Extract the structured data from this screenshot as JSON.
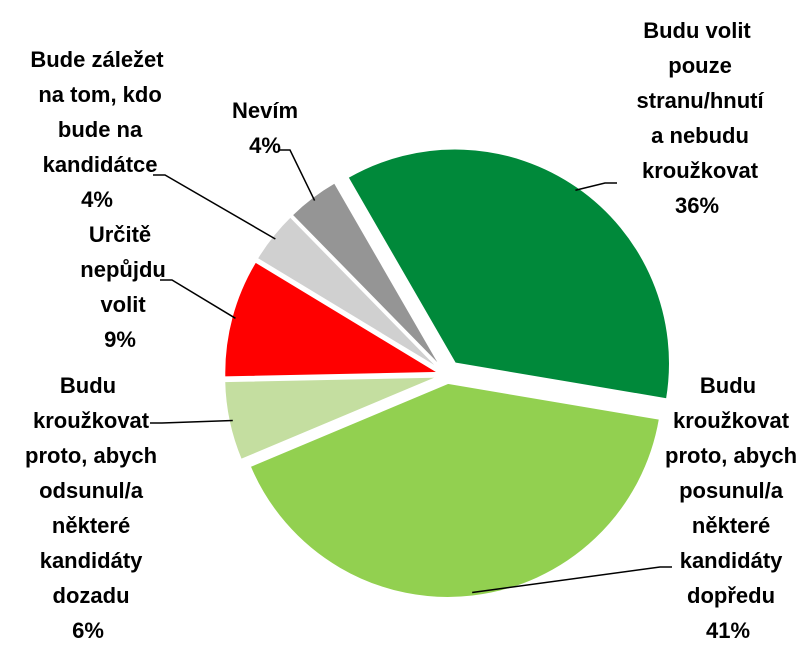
{
  "chart_data": {
    "type": "pie",
    "categories": [
      "Budu volit pouze stranu/hnutí a nebudu kroužkovat",
      "Budu kroužkovat proto, abych posunul/a některé kandidáty dopředu",
      "Budu kroužkovat proto, abych odsunul/a některé kandidáty dozadu",
      "Určitě nepůjdu volit",
      "Bude záležet na tom, kdo bude na kandidátce",
      "Nevím"
    ],
    "values": [
      36,
      41,
      6,
      9,
      4,
      4
    ],
    "value_labels": [
      "36%",
      "41%",
      "6%",
      "9%",
      "4%",
      "4%"
    ],
    "colors": [
      "#00893a",
      "#92d050",
      "#c4dea0",
      "#ff0000",
      "#d0d0d0",
      "#959595"
    ]
  }
}
